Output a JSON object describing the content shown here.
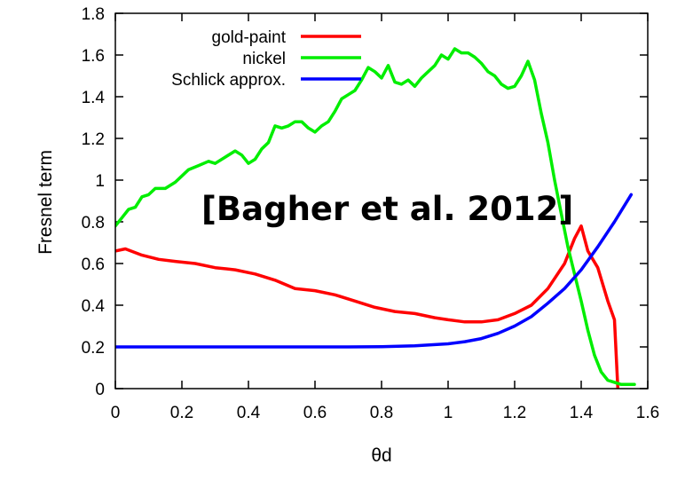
{
  "chart_data": {
    "type": "line",
    "xlabel": "θd",
    "ylabel": "Fresnel term",
    "xlim": [
      0,
      1.6
    ],
    "ylim": [
      0,
      1.8
    ],
    "xticks": [
      "0",
      "0.2",
      "0.4",
      "0.6",
      "0.8",
      "1",
      "1.2",
      "1.4",
      "1.6"
    ],
    "yticks": [
      "0",
      "0.2",
      "0.4",
      "0.6",
      "0.8",
      "1",
      "1.2",
      "1.4",
      "1.6",
      "1.8"
    ],
    "grid": false,
    "legend_position": "top-left",
    "annotation": "[Bagher et al. 2012]",
    "series": [
      {
        "name": "gold-paint",
        "color": "#ff0000",
        "x": [
          0,
          0.03,
          0.08,
          0.13,
          0.18,
          0.24,
          0.3,
          0.36,
          0.42,
          0.48,
          0.54,
          0.6,
          0.66,
          0.72,
          0.78,
          0.84,
          0.9,
          0.96,
          1.0,
          1.05,
          1.1,
          1.15,
          1.2,
          1.25,
          1.3,
          1.35,
          1.38,
          1.4,
          1.42,
          1.45,
          1.48,
          1.5,
          1.51
        ],
        "y": [
          0.66,
          0.67,
          0.64,
          0.62,
          0.61,
          0.6,
          0.58,
          0.57,
          0.55,
          0.52,
          0.48,
          0.47,
          0.45,
          0.42,
          0.39,
          0.37,
          0.36,
          0.34,
          0.33,
          0.32,
          0.32,
          0.33,
          0.36,
          0.4,
          0.48,
          0.6,
          0.72,
          0.78,
          0.66,
          0.58,
          0.42,
          0.33,
          0.0
        ]
      },
      {
        "name": "nickel",
        "color": "#00ee00",
        "x": [
          0,
          0.02,
          0.04,
          0.06,
          0.08,
          0.1,
          0.12,
          0.15,
          0.18,
          0.2,
          0.22,
          0.25,
          0.28,
          0.3,
          0.33,
          0.36,
          0.38,
          0.4,
          0.42,
          0.44,
          0.46,
          0.48,
          0.5,
          0.52,
          0.54,
          0.56,
          0.58,
          0.6,
          0.62,
          0.64,
          0.66,
          0.68,
          0.7,
          0.72,
          0.74,
          0.76,
          0.78,
          0.8,
          0.82,
          0.84,
          0.86,
          0.88,
          0.9,
          0.92,
          0.94,
          0.96,
          0.98,
          1.0,
          1.02,
          1.04,
          1.06,
          1.08,
          1.1,
          1.12,
          1.14,
          1.16,
          1.18,
          1.2,
          1.22,
          1.24,
          1.26,
          1.28,
          1.3,
          1.32,
          1.34,
          1.36,
          1.38,
          1.4,
          1.42,
          1.44,
          1.46,
          1.48,
          1.5,
          1.52,
          1.54,
          1.56
        ],
        "y": [
          0.78,
          0.82,
          0.86,
          0.87,
          0.92,
          0.93,
          0.96,
          0.96,
          0.99,
          1.02,
          1.05,
          1.07,
          1.09,
          1.08,
          1.11,
          1.14,
          1.12,
          1.08,
          1.1,
          1.15,
          1.18,
          1.26,
          1.25,
          1.26,
          1.28,
          1.28,
          1.25,
          1.23,
          1.26,
          1.28,
          1.33,
          1.39,
          1.41,
          1.43,
          1.48,
          1.54,
          1.52,
          1.49,
          1.55,
          1.47,
          1.46,
          1.48,
          1.45,
          1.49,
          1.52,
          1.55,
          1.6,
          1.58,
          1.63,
          1.61,
          1.61,
          1.59,
          1.56,
          1.52,
          1.5,
          1.46,
          1.44,
          1.45,
          1.5,
          1.57,
          1.48,
          1.32,
          1.18,
          1.0,
          0.84,
          0.68,
          0.55,
          0.42,
          0.28,
          0.16,
          0.08,
          0.04,
          0.03,
          0.02,
          0.02,
          0.02
        ]
      },
      {
        "name": "Schlick approx.",
        "color": "#0000ff",
        "x": [
          0,
          0.1,
          0.2,
          0.3,
          0.4,
          0.5,
          0.6,
          0.7,
          0.8,
          0.9,
          1.0,
          1.05,
          1.1,
          1.15,
          1.2,
          1.25,
          1.3,
          1.35,
          1.4,
          1.45,
          1.5,
          1.55
        ],
        "y": [
          0.2,
          0.2,
          0.2,
          0.2,
          0.2,
          0.2,
          0.2,
          0.2,
          0.201,
          0.205,
          0.215,
          0.225,
          0.24,
          0.265,
          0.3,
          0.345,
          0.41,
          0.48,
          0.57,
          0.68,
          0.8,
          0.93
        ]
      }
    ]
  }
}
